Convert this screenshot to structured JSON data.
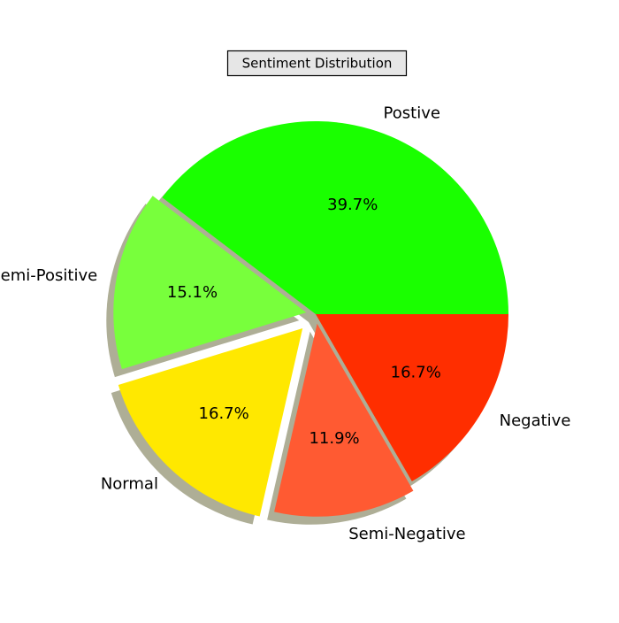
{
  "chart_data": {
    "type": "pie",
    "title": "Sentiment Distribution",
    "slices": [
      {
        "label": "Postive",
        "percent_label": "39.7%",
        "value": 39.7,
        "color": "#1aff00",
        "explode": 0
      },
      {
        "label": "Semi-Positive",
        "percent_label": "15.1%",
        "value": 15.1,
        "color": "#78ff3c",
        "explode": 0.05
      },
      {
        "label": "Normal",
        "percent_label": "16.7%",
        "value": 16.7,
        "color": "#ffe800",
        "explode": 0.1
      },
      {
        "label": "Semi-Negative",
        "percent_label": "11.9%",
        "value": 11.9,
        "color": "#ff5a32",
        "explode": 0.05
      },
      {
        "label": "Negative",
        "percent_label": "16.7%",
        "value": 16.7,
        "color": "#ff2e00",
        "explode": 0
      }
    ],
    "start_angle_deg": 0,
    "shadow": true,
    "legend": "none"
  }
}
